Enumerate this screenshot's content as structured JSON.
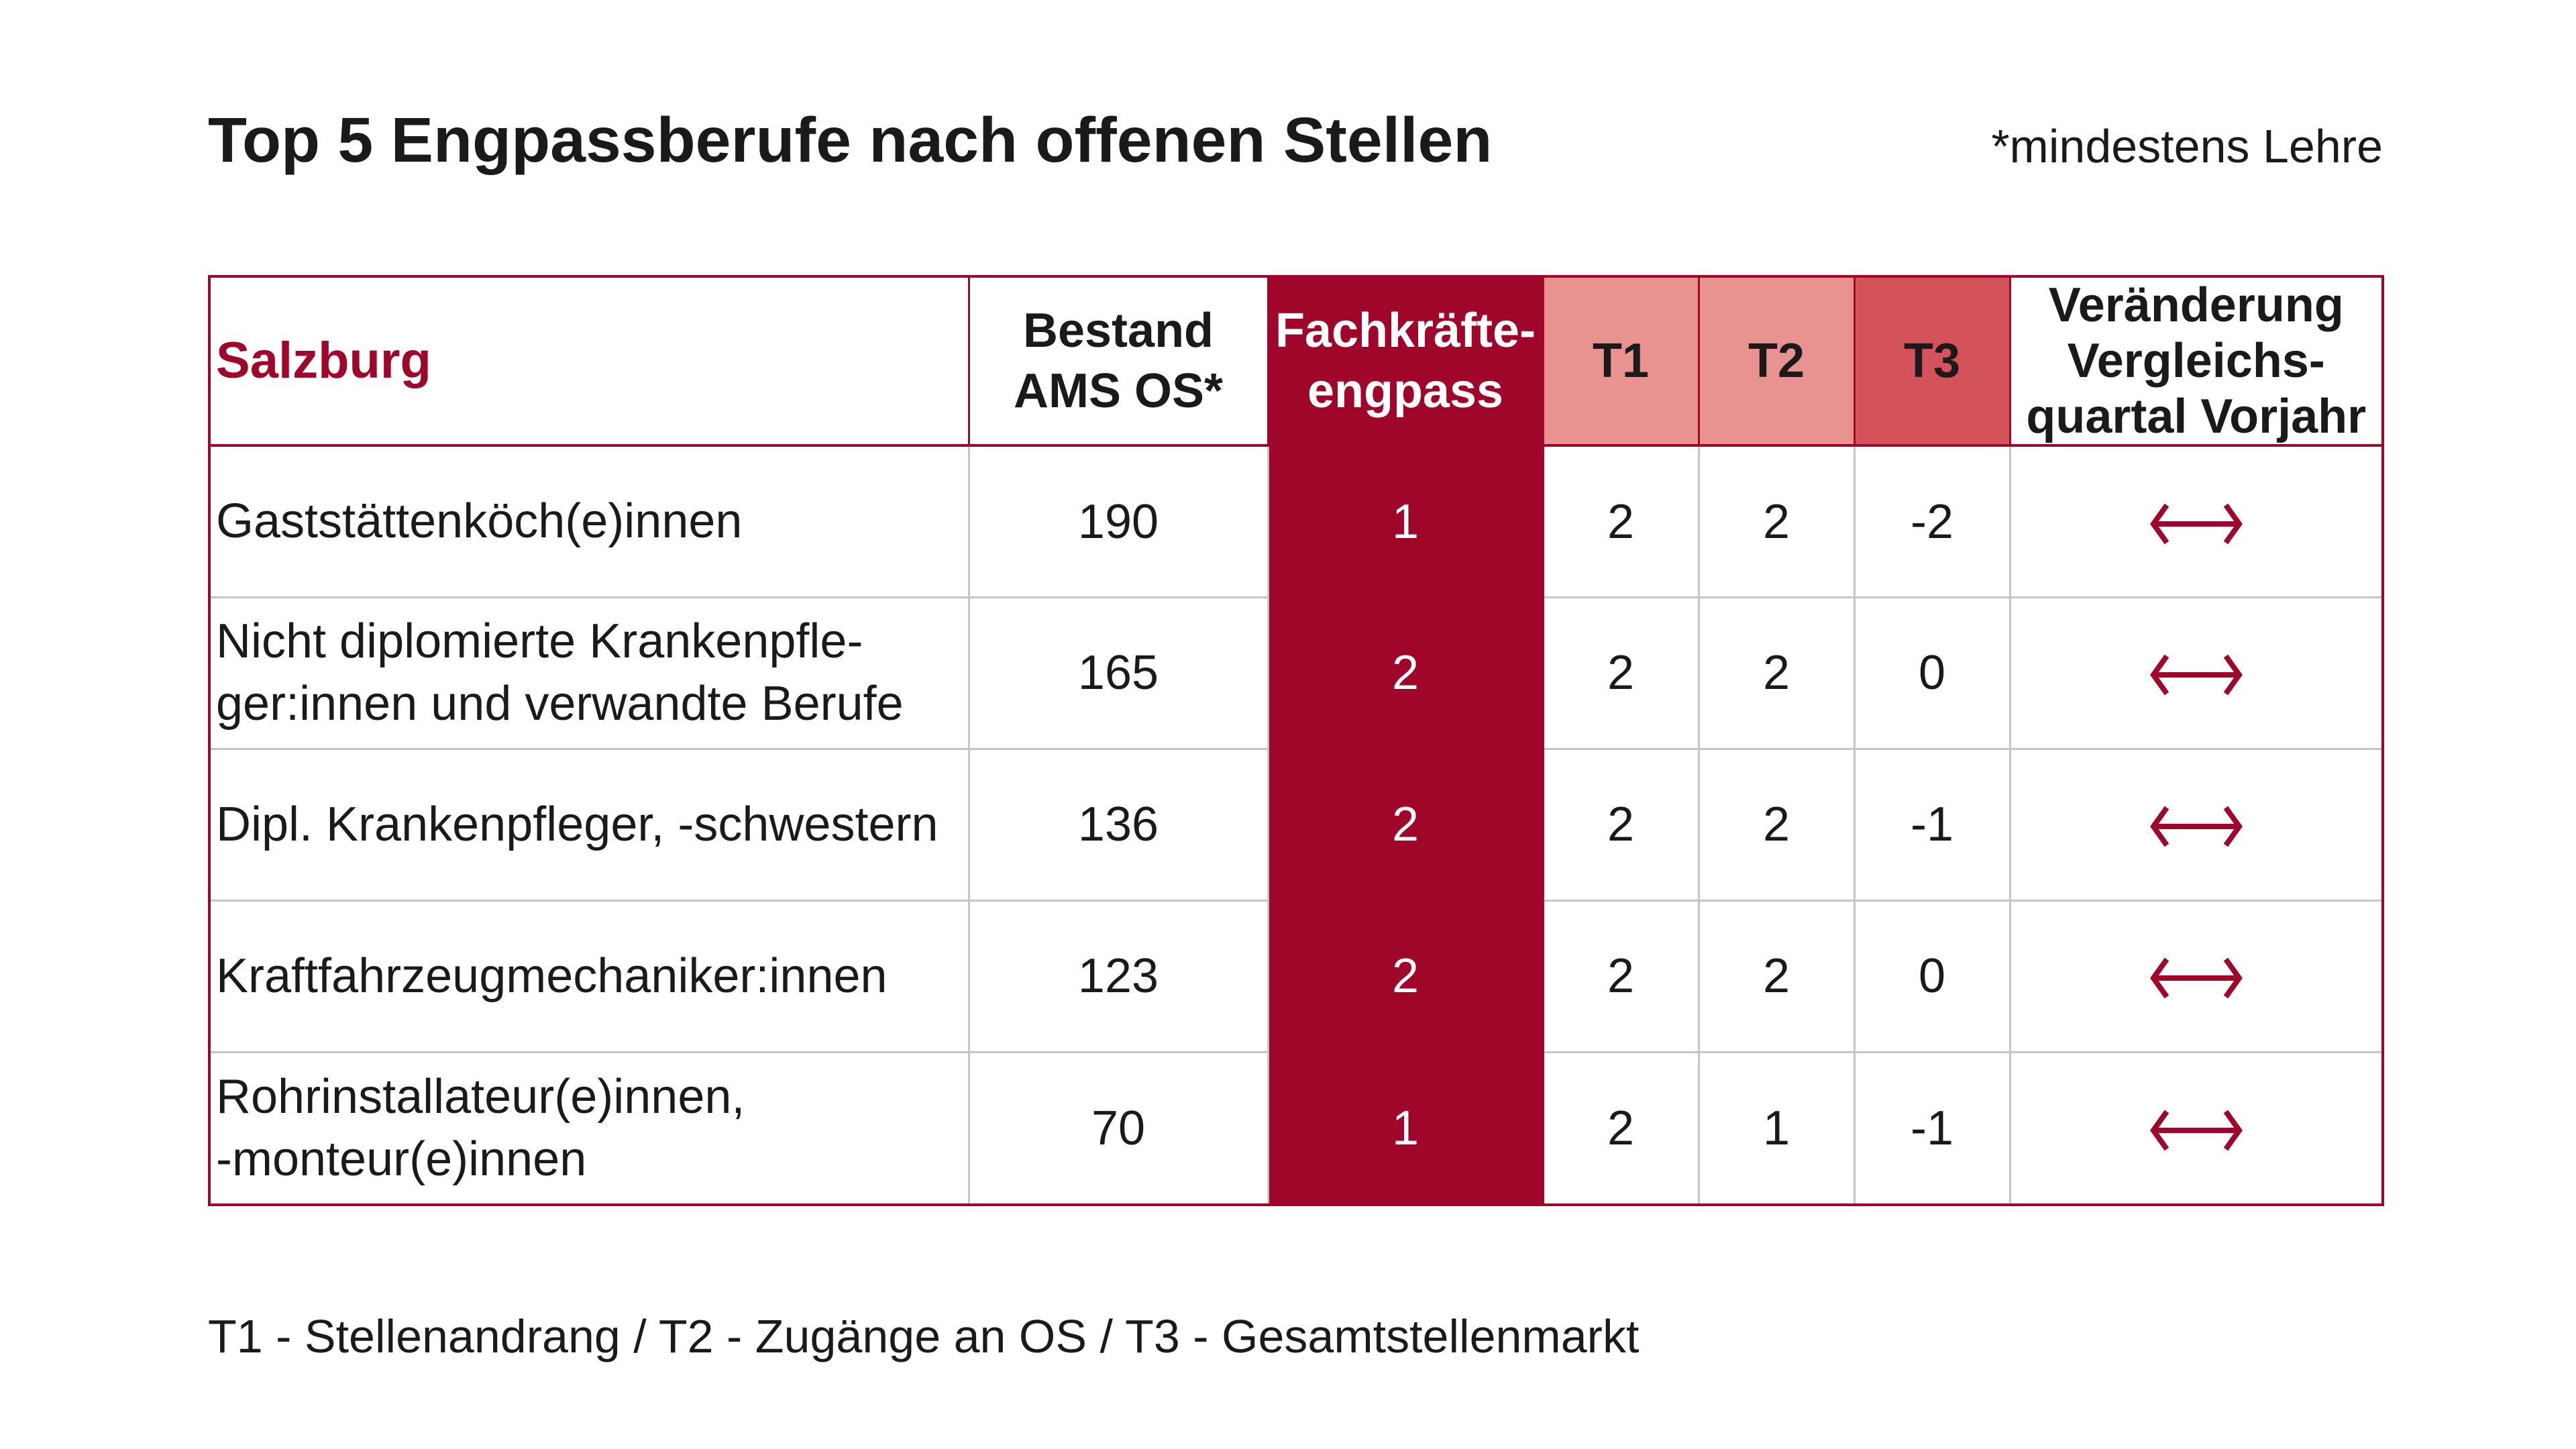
{
  "title": "Top 5 Engpassberufe nach offenen Stellen",
  "note": "*mindestens Lehre",
  "footnote": "T1 - Stellenandrang / T2 - Zugänge an OS / T3 - Gesamtstellenmarkt",
  "colors": {
    "accent": "#a0052a",
    "t1_t2": "#e8938f",
    "t3": "#d4525a",
    "grid": "#c6c6c6"
  },
  "chart_data": {
    "type": "table",
    "columns": [
      "Salzburg",
      "Bestand AMS OS*",
      "Fachkräfte-engpass",
      "T1",
      "T2",
      "T3",
      "Veränderung Vergleichs-quartal Vorjahr"
    ],
    "header": {
      "region": "Salzburg",
      "bestand_l1": "Bestand",
      "bestand_l2": "AMS OS*",
      "fk_l1": "Fachkräfte-",
      "fk_l2": "engpass",
      "t1": "T1",
      "t2": "T2",
      "t3": "T3",
      "change_l1": "Veränderung",
      "change_l2": "Vergleichs-",
      "change_l3": "quartal Vorjahr"
    },
    "rows": [
      {
        "name_l1": "Gaststättenköch(e)innen",
        "name_l2": "",
        "bestand": "190",
        "fachkraefteengpass": "1",
        "t1": "2",
        "t2": "2",
        "t3": "-2",
        "change": "unchanged",
        "change_icon": "double-arrow-icon"
      },
      {
        "name_l1": "Nicht diplomierte Krankenpfle-",
        "name_l2": "ger:innen und verwandte Berufe",
        "bestand": "165",
        "fachkraefteengpass": "2",
        "t1": "2",
        "t2": "2",
        "t3": "0",
        "change": "unchanged",
        "change_icon": "double-arrow-icon"
      },
      {
        "name_l1": "Dipl. Krankenpfleger, -schwestern",
        "name_l2": "",
        "bestand": "136",
        "fachkraefteengpass": "2",
        "t1": "2",
        "t2": "2",
        "t3": "-1",
        "change": "unchanged",
        "change_icon": "double-arrow-icon"
      },
      {
        "name_l1": "Kraftfahrzeugmechaniker:innen",
        "name_l2": "",
        "bestand": "123",
        "fachkraefteengpass": "2",
        "t1": "2",
        "t2": "2",
        "t3": "0",
        "change": "unchanged",
        "change_icon": "double-arrow-icon"
      },
      {
        "name_l1": "Rohrinstallateur(e)innen,",
        "name_l2": "-monteur(e)innen",
        "bestand": "70",
        "fachkraefteengpass": "1",
        "t1": "2",
        "t2": "1",
        "t3": "-1",
        "change": "unchanged",
        "change_icon": "double-arrow-icon"
      }
    ]
  }
}
